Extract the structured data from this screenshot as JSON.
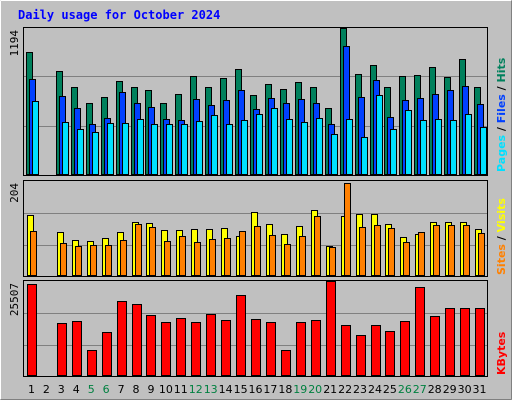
{
  "title": "Daily usage for October 2024",
  "colors": {
    "title_text": "#0000ff",
    "background": "#c0c0c0",
    "hits": "#00805c",
    "files": "#0040ff",
    "pages": "#00e0ff",
    "visits": "#ffff00",
    "sites": "#ff8000",
    "kbytes": "#ff0000",
    "weekend_day_label": "#008040"
  },
  "chart_data": [
    {
      "type": "bar",
      "panel": "pages-files-hits",
      "y_max_label": "1194",
      "ylim": [
        0,
        1194
      ],
      "grid": true,
      "legend_placement": "right",
      "legend_separator": " / ",
      "categories": [
        "1",
        "2",
        "3",
        "4",
        "5",
        "6",
        "7",
        "8",
        "9",
        "10",
        "11",
        "12",
        "13",
        "14",
        "15",
        "16",
        "17",
        "18",
        "19",
        "20",
        "21",
        "22",
        "23",
        "24",
        "25",
        "26",
        "27",
        "28",
        "29",
        "30",
        "31"
      ],
      "series": [
        {
          "name": "Hits",
          "values": [
            997,
            0,
            843,
            714,
            578,
            632,
            763,
            714,
            684,
            578,
            653,
            802,
            714,
            782,
            856,
            650,
            734,
            694,
            756,
            714,
            541,
            1194,
            818,
            888,
            710,
            802,
            812,
            877,
            793,
            938,
            710
          ]
        },
        {
          "name": "Files",
          "values": [
            773,
            0,
            641,
            541,
            411,
            459,
            673,
            578,
            544,
            450,
            443,
            616,
            561,
            604,
            690,
            528,
            622,
            578,
            616,
            578,
            408,
            1044,
            633,
            769,
            466,
            606,
            622,
            656,
            690,
            717,
            571
          ]
        },
        {
          "name": "Pages",
          "values": [
            597,
            0,
            422,
            371,
            347,
            415,
            419,
            449,
            405,
            408,
            408,
            437,
            486,
            408,
            439,
            492,
            542,
            449,
            422,
            459,
            330,
            446,
            299,
            650,
            365,
            523,
            442,
            452,
            439,
            493,
            388
          ]
        }
      ]
    },
    {
      "type": "bar",
      "panel": "visits-sites",
      "y_max_label": "204",
      "ylim": [
        0,
        204
      ],
      "grid": true,
      "legend_placement": "right",
      "legend_separator": " / ",
      "categories": [
        "1",
        "2",
        "3",
        "4",
        "5",
        "6",
        "7",
        "8",
        "9",
        "10",
        "11",
        "12",
        "13",
        "14",
        "15",
        "16",
        "17",
        "18",
        "19",
        "20",
        "21",
        "22",
        "23",
        "24",
        "25",
        "26",
        "27",
        "28",
        "29",
        "30",
        "31"
      ],
      "series": [
        {
          "name": "Visits",
          "values": [
            131,
            0,
            93,
            75,
            73,
            81,
            93,
            116,
            113,
            98,
            98,
            99,
            99,
            101,
            84,
            136,
            110,
            88,
            106,
            141,
            63,
            127,
            133,
            132,
            111,
            82,
            88,
            115,
            116,
            114,
            99
          ]
        },
        {
          "name": "Sites",
          "values": [
            96,
            0,
            69,
            63,
            65,
            65,
            75,
            110,
            104,
            74,
            84,
            72,
            78,
            81,
            95,
            107,
            86,
            68,
            85,
            129,
            61,
            199,
            105,
            109,
            103,
            72,
            94,
            108,
            109,
            109,
            91
          ]
        }
      ]
    },
    {
      "type": "bar",
      "panel": "kbytes",
      "y_max_label": "25507",
      "ylim": [
        0,
        25507
      ],
      "grid": true,
      "legend_placement": "right",
      "categories": [
        "1",
        "2",
        "3",
        "4",
        "5",
        "6",
        "7",
        "8",
        "9",
        "10",
        "11",
        "12",
        "13",
        "14",
        "15",
        "16",
        "17",
        "18",
        "19",
        "20",
        "21",
        "22",
        "23",
        "24",
        "25",
        "26",
        "27",
        "28",
        "29",
        "30",
        "31"
      ],
      "series": [
        {
          "name": "KBytes",
          "values": [
            24760,
            0,
            14120,
            14580,
            6910,
            11660,
            19970,
            19280,
            16410,
            14360,
            15430,
            14380,
            16570,
            15000,
            21660,
            15150,
            14330,
            6910,
            14340,
            14810,
            25507,
            13700,
            10780,
            13700,
            11830,
            14570,
            23990,
            15990,
            18090,
            18090,
            18090
          ]
        }
      ]
    }
  ],
  "day_labels": {
    "days": [
      "1",
      "2",
      "3",
      "4",
      "5",
      "6",
      "7",
      "8",
      "9",
      "10",
      "11",
      "12",
      "13",
      "14",
      "15",
      "16",
      "17",
      "18",
      "19",
      "20",
      "21",
      "22",
      "23",
      "24",
      "25",
      "26",
      "27",
      "28",
      "29",
      "30",
      "31"
    ],
    "weekend_days": [
      "5",
      "6",
      "12",
      "13",
      "19",
      "20",
      "26",
      "27"
    ]
  }
}
